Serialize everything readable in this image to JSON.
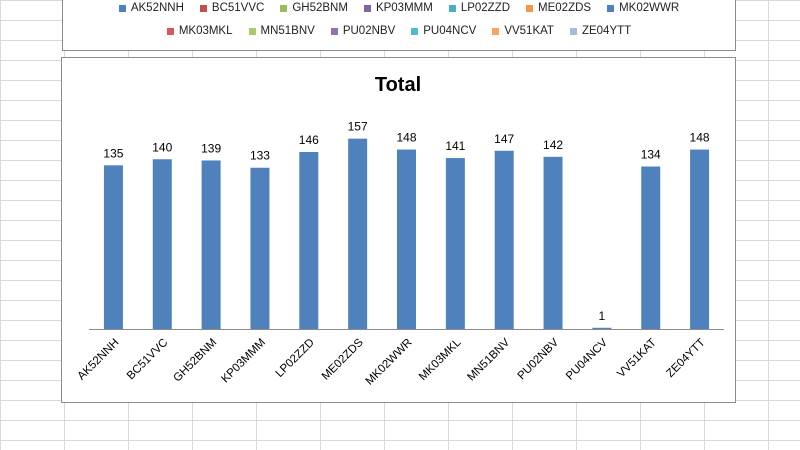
{
  "legend": {
    "items": [
      {
        "label": "AK52NNH",
        "color": "#4f81bd"
      },
      {
        "label": "BC51VVC",
        "color": "#c0504d"
      },
      {
        "label": "GH52BNM",
        "color": "#9bbb59"
      },
      {
        "label": "KP03MMM",
        "color": "#8064a2"
      },
      {
        "label": "LP02ZZD",
        "color": "#4bacc6"
      },
      {
        "label": "ME02ZDS",
        "color": "#f79646"
      },
      {
        "label": "MK02WWR",
        "color": "#4f81bd"
      },
      {
        "label": "MK03MKL",
        "color": "#d9595a"
      },
      {
        "label": "MN51BNV",
        "color": "#a9c96a"
      },
      {
        "label": "PU02NBV",
        "color": "#8f74b1"
      },
      {
        "label": "PU04NCV",
        "color": "#4dbbd0"
      },
      {
        "label": "VV51KAT",
        "color": "#f9a35c"
      },
      {
        "label": "ZE04YTT",
        "color": "#a7bcdc"
      }
    ]
  },
  "chart_data": {
    "type": "bar",
    "title": "Total",
    "categories": [
      "AK52NNH",
      "BC51VVC",
      "GH52BNM",
      "KP03MMM",
      "LP02ZZD",
      "ME02ZDS",
      "MK02WWR",
      "MK03MKL",
      "MN51BNV",
      "PU02NBV",
      "PU04NCV",
      "VV51KAT",
      "ZE04YTT"
    ],
    "values": [
      135,
      140,
      139,
      133,
      146,
      157,
      148,
      141,
      147,
      142,
      1,
      134,
      148
    ],
    "bar_color": "#4f81bd",
    "data_labels": true,
    "gridlines": false,
    "ylim": [
      0,
      160
    ],
    "xlabel": "",
    "ylabel": ""
  }
}
